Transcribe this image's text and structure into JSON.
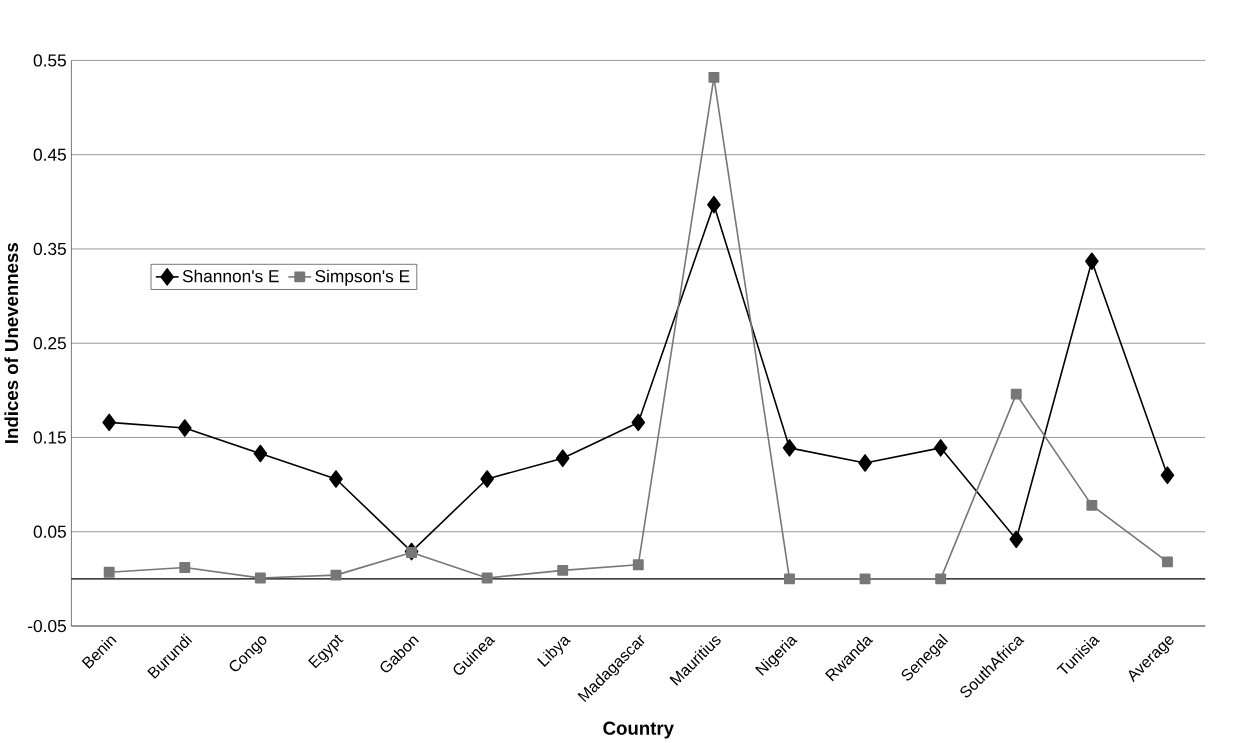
{
  "chart_data": {
    "type": "line",
    "xlabel": "Country",
    "ylabel": "Indices of Unevenness",
    "categories": [
      "Benin",
      "Burundi",
      "Congo",
      "Egypt",
      "Gabon",
      "Guinea",
      "Libya",
      "Madagascar",
      "Mauritius",
      "Nigeria",
      "Rwanda",
      "Senegal",
      "SouthAfrica",
      "Tunisia",
      "Average"
    ],
    "series": [
      {
        "name": "Shannon's E",
        "color": "#000000",
        "marker": "diamond",
        "values": [
          0.166,
          0.16,
          0.133,
          0.106,
          0.029,
          0.106,
          0.128,
          0.166,
          0.397,
          0.139,
          0.123,
          0.139,
          0.042,
          0.337,
          0.11
        ]
      },
      {
        "name": "Simpson's E",
        "color": "#777777",
        "marker": "square",
        "values": [
          0.007,
          0.012,
          0.001,
          0.004,
          0.028,
          0.001,
          0.009,
          0.015,
          0.532,
          0.0,
          0.0,
          0.0,
          0.196,
          0.078,
          0.018
        ]
      }
    ],
    "ylim": [
      -0.05,
      0.55
    ],
    "yticks": [
      -0.05,
      0.05,
      0.15,
      0.25,
      0.35,
      0.45,
      0.55
    ],
    "grid": "y",
    "legend": "left"
  }
}
